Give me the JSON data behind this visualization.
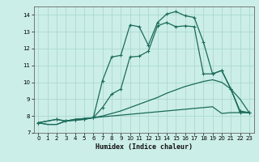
{
  "xlabel": "Humidex (Indice chaleur)",
  "bg_color": "#cceee8",
  "grid_color": "#aad8d0",
  "line_color": "#1a6b5a",
  "xlim": [
    -0.5,
    23.5
  ],
  "ylim": [
    7,
    14.5
  ],
  "xticks": [
    0,
    1,
    2,
    3,
    4,
    5,
    6,
    7,
    8,
    9,
    10,
    11,
    12,
    13,
    14,
    15,
    16,
    17,
    18,
    19,
    20,
    21,
    22,
    23
  ],
  "yticks": [
    7,
    8,
    9,
    10,
    11,
    12,
    13,
    14
  ],
  "line1_x": [
    0,
    1,
    2,
    3,
    4,
    5,
    6,
    7,
    8,
    9,
    10,
    11,
    12,
    13,
    14,
    15,
    16,
    17,
    18,
    19,
    20,
    21,
    22,
    23
  ],
  "line1_y": [
    7.6,
    7.5,
    7.5,
    7.7,
    7.8,
    7.85,
    7.9,
    7.95,
    8.0,
    8.05,
    8.1,
    8.15,
    8.2,
    8.25,
    8.3,
    8.35,
    8.4,
    8.45,
    8.5,
    8.55,
    8.15,
    8.2,
    8.2,
    8.2
  ],
  "line2_x": [
    0,
    1,
    2,
    3,
    4,
    5,
    6,
    7,
    8,
    9,
    10,
    11,
    12,
    13,
    14,
    15,
    16,
    17,
    18,
    19,
    20,
    21,
    22,
    23
  ],
  "line2_y": [
    7.6,
    7.5,
    7.5,
    7.7,
    7.8,
    7.85,
    7.9,
    8.0,
    8.15,
    8.3,
    8.5,
    8.7,
    8.9,
    9.1,
    9.35,
    9.55,
    9.75,
    9.9,
    10.05,
    10.15,
    10.0,
    9.6,
    9.0,
    8.2
  ],
  "line3_x": [
    0,
    2,
    3,
    4,
    5,
    6,
    7,
    8,
    9,
    10,
    11,
    12,
    13,
    14,
    15,
    16,
    17,
    18,
    19,
    20,
    21,
    22,
    23
  ],
  "line3_y": [
    7.6,
    7.8,
    7.7,
    7.75,
    7.8,
    7.9,
    8.5,
    9.3,
    9.6,
    11.5,
    11.55,
    11.85,
    13.35,
    13.55,
    13.3,
    13.35,
    13.3,
    10.5,
    10.5,
    10.7,
    9.6,
    8.3,
    8.2
  ],
  "line4_x": [
    0,
    2,
    3,
    4,
    5,
    6,
    7,
    8,
    9,
    10,
    11,
    12,
    13,
    14,
    15,
    16,
    17,
    18,
    19,
    20,
    21,
    22,
    23
  ],
  "line4_y": [
    7.6,
    7.8,
    7.7,
    7.75,
    7.8,
    7.9,
    10.1,
    11.5,
    11.6,
    13.4,
    13.3,
    12.2,
    13.55,
    14.05,
    14.2,
    13.95,
    13.85,
    12.4,
    10.5,
    10.7,
    9.6,
    8.2,
    8.2
  ]
}
